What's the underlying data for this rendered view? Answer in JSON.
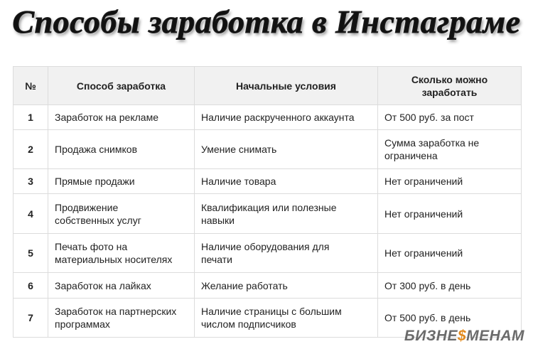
{
  "header": {
    "title": "Способы заработка в Инстаграме"
  },
  "table": {
    "columns": [
      "№",
      "Способ заработка",
      "Начальные условия",
      [
        "Сколько можно",
        "заработать"
      ]
    ],
    "rows": [
      [
        "1",
        "Заработок на рекламе",
        "Наличие раскрученного аккаунта",
        "От 500 руб. за пост"
      ],
      [
        "2",
        "Продажа снимков",
        "Умение снимать",
        [
          "Сумма заработка не",
          "ограничена"
        ]
      ],
      [
        "3",
        "Прямые продажи",
        "Наличие товара",
        "Нет ограничений"
      ],
      [
        "4",
        [
          "Продвижение",
          "собственных услуг"
        ],
        [
          "Квалификация или полезные",
          "навыки"
        ],
        "Нет ограничений"
      ],
      [
        "5",
        [
          "Печать фото на",
          "материальных носителях"
        ],
        [
          "Наличие оборудования для",
          "печати"
        ],
        "Нет ограничений"
      ],
      [
        "6",
        "Заработок на лайках",
        "Желание работать",
        "От 300 руб. в день"
      ],
      [
        "7",
        [
          "Заработок на партнерских",
          "программах"
        ],
        [
          "Наличие страницы с большим",
          "числом подписчиков"
        ],
        "От 500 руб. в день"
      ]
    ]
  },
  "logo": [
    "БИЗНЕ",
    "$",
    "МЕНАМ"
  ]
}
